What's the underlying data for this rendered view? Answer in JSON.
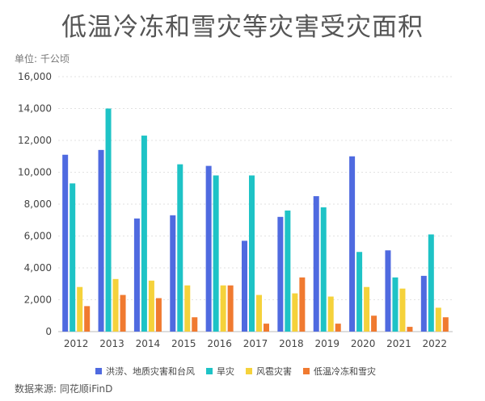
{
  "chart_data": {
    "type": "bar",
    "title": "低温冷冻和雪灾等灾害受灾面积",
    "unit": "单位: 千公顷",
    "source": "数据来源: 同花顺iFinD",
    "categories": [
      "2012",
      "2013",
      "2014",
      "2015",
      "2016",
      "2017",
      "2018",
      "2019",
      "2020",
      "2021",
      "2022"
    ],
    "ylim": [
      0,
      16000
    ],
    "yticks": [
      "0",
      "2,000",
      "4,000",
      "6,000",
      "8,000",
      "10,000",
      "12,000",
      "14,000",
      "16,000"
    ],
    "grid": true,
    "legend_position": "bottom",
    "series": [
      {
        "name": "洪涝、地质灾害和台风",
        "color": "#4f6ae0",
        "values": [
          11100,
          11400,
          7100,
          7300,
          10400,
          5700,
          7200,
          8500,
          11000,
          5100,
          3500
        ]
      },
      {
        "name": "旱灾",
        "color": "#1ec3c6",
        "values": [
          9300,
          14000,
          12300,
          10500,
          9800,
          9800,
          7600,
          7800,
          5000,
          3400,
          6100
        ]
      },
      {
        "name": "风雹灾害",
        "color": "#f5d23b",
        "values": [
          2800,
          3300,
          3200,
          2900,
          2900,
          2300,
          2400,
          2200,
          2800,
          2700,
          1500
        ]
      },
      {
        "name": "低温冷冻和雪灾",
        "color": "#f07a30",
        "values": [
          1600,
          2300,
          2100,
          900,
          2900,
          500,
          3400,
          500,
          1000,
          300,
          900
        ]
      }
    ]
  }
}
